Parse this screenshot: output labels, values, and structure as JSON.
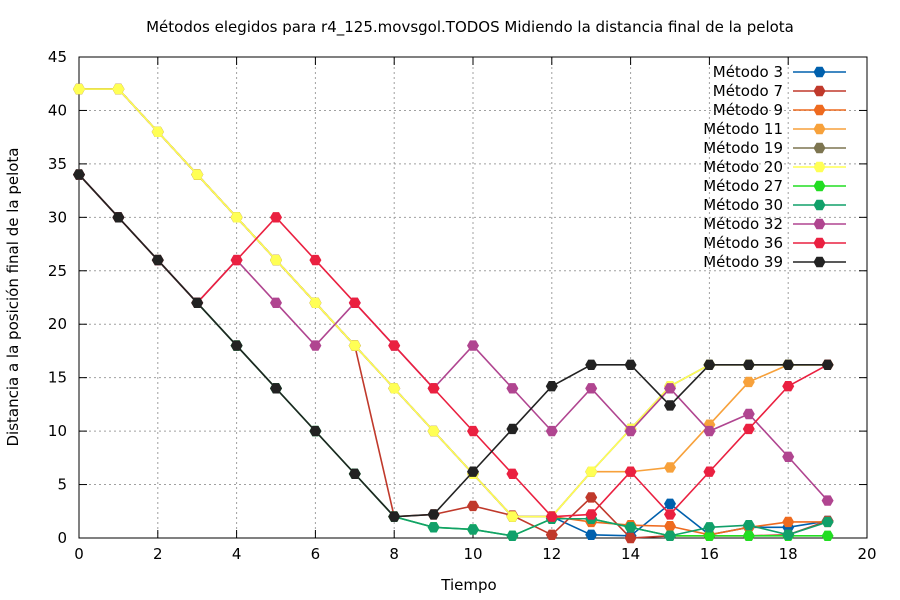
{
  "chart_data": {
    "type": "line",
    "title": "Métodos elegidos para r4_125.movsgol.TODOS Midiendo la distancia final de la pelota",
    "xlabel": "Tiempo",
    "ylabel": "Distancia a la posición final de la pelota",
    "xlim": [
      0,
      20
    ],
    "ylim": [
      0,
      45
    ],
    "xticks": [
      "0",
      "2",
      "4",
      "6",
      "8",
      "10",
      "12",
      "14",
      "16",
      "18",
      "20"
    ],
    "yticks": [
      "0",
      "5",
      "10",
      "15",
      "20",
      "25",
      "30",
      "35",
      "40",
      "45"
    ],
    "grid": true,
    "legend_position": "top-right",
    "series": [
      {
        "name": "Método 3",
        "color": "#0060ad",
        "x": [
          0,
          1,
          2,
          3,
          4,
          5,
          6,
          7,
          8,
          9,
          10,
          11,
          12,
          13,
          14,
          15,
          16,
          17,
          18,
          19
        ],
        "y": [
          42,
          42,
          38,
          34,
          30,
          26,
          22,
          18,
          14,
          10,
          6,
          2,
          2,
          0.3,
          0.2,
          3.2,
          0.3,
          1,
          1,
          1.6
        ]
      },
      {
        "name": "Método 7",
        "color": "#c0392b",
        "x": [
          0,
          1,
          2,
          3,
          4,
          5,
          6,
          7,
          8,
          9,
          10,
          11,
          12,
          13,
          14,
          15,
          16,
          17,
          18,
          19
        ],
        "y": [
          42,
          42,
          38,
          34,
          30,
          26,
          22,
          18,
          2,
          2.2,
          3,
          2.1,
          0.3,
          3.8,
          0,
          0.2,
          0.2,
          0.2,
          0.3,
          1.6
        ]
      },
      {
        "name": "Método 9",
        "color": "#ee6a1f",
        "x": [
          0,
          1,
          2,
          3,
          4,
          5,
          6,
          7,
          8,
          9,
          10,
          11,
          12,
          13,
          14,
          15,
          16,
          17,
          18,
          19
        ],
        "y": [
          42,
          42,
          38,
          34,
          30,
          26,
          22,
          18,
          14,
          10,
          6,
          2,
          2,
          1.5,
          1.2,
          1.1,
          0.3,
          1,
          1.5,
          1.5
        ]
      },
      {
        "name": "Método 11",
        "color": "#f7a13b",
        "x": [
          0,
          1,
          2,
          3,
          4,
          5,
          6,
          7,
          8,
          9,
          10,
          11,
          12,
          13,
          14,
          15,
          16,
          17,
          18,
          19
        ],
        "y": [
          42,
          42,
          38,
          34,
          30,
          26,
          22,
          18,
          14,
          10,
          6,
          2,
          2,
          6.2,
          6.2,
          6.6,
          10.6,
          14.6,
          16.2,
          16.2
        ]
      },
      {
        "name": "Método 19",
        "color": "#7d7550",
        "x": [
          0,
          1,
          2,
          3,
          4,
          5,
          6,
          7,
          8,
          9,
          10,
          11,
          12,
          13,
          14,
          15,
          16,
          17,
          18,
          19
        ],
        "y": [
          42,
          42,
          38,
          34,
          30,
          26,
          22,
          18,
          14,
          10,
          6,
          2,
          2,
          6.2,
          10.2,
          14.2,
          16.2,
          16.2,
          16.2,
          16.2
        ]
      },
      {
        "name": "Método 20",
        "color": "#ffff55",
        "x": [
          0,
          1,
          2,
          3,
          4,
          5,
          6,
          7,
          8,
          9,
          10,
          11,
          12,
          13,
          14,
          15,
          16,
          17,
          18,
          19
        ],
        "y": [
          42,
          42,
          38,
          34,
          30,
          26,
          22,
          18,
          14,
          10,
          6,
          2,
          2,
          6.2,
          10.2,
          14.2,
          16.2,
          16.2,
          16.2,
          16.2
        ]
      },
      {
        "name": "Método 27",
        "color": "#22dd22",
        "x": [
          0,
          1,
          2,
          3,
          4,
          5,
          6,
          7,
          8,
          9,
          10,
          11,
          12,
          13,
          14,
          15,
          16,
          17,
          18,
          19
        ],
        "y": [
          34,
          30,
          26,
          22,
          18,
          14,
          10,
          6,
          2,
          1,
          0.8,
          0.2,
          1.8,
          1.8,
          1,
          0.2,
          0.2,
          0.2,
          0.2,
          0.2
        ]
      },
      {
        "name": "Método 30",
        "color": "#11a06a",
        "x": [
          0,
          1,
          2,
          3,
          4,
          5,
          6,
          7,
          8,
          9,
          10,
          11,
          12,
          13,
          14,
          15,
          16,
          17,
          18,
          19
        ],
        "y": [
          34,
          30,
          26,
          22,
          18,
          14,
          10,
          6,
          2,
          1,
          0.8,
          0.2,
          1.8,
          1.8,
          1,
          0.2,
          1,
          1.2,
          0.3,
          1.5
        ]
      },
      {
        "name": "Método 32",
        "color": "#b04590",
        "x": [
          0,
          1,
          2,
          3,
          4,
          5,
          6,
          7,
          8,
          9,
          10,
          11,
          12,
          13,
          14,
          15,
          16,
          17,
          18,
          19
        ],
        "y": [
          34,
          30,
          26,
          22,
          26,
          22,
          18,
          22,
          18,
          14,
          18,
          14,
          10,
          14,
          10,
          14,
          10,
          11.6,
          7.6,
          3.5
        ]
      },
      {
        "name": "Método 36",
        "color": "#ea2040",
        "x": [
          0,
          1,
          2,
          3,
          4,
          5,
          6,
          7,
          8,
          9,
          10,
          11,
          12,
          13,
          14,
          15,
          16,
          17,
          18,
          19
        ],
        "y": [
          34,
          30,
          26,
          22,
          26,
          30,
          26,
          22,
          18,
          14,
          10,
          6,
          2,
          2.2,
          6.2,
          2.2,
          6.2,
          10.2,
          14.2,
          16.2
        ]
      },
      {
        "name": "Método 39",
        "color": "#222222",
        "x": [
          0,
          1,
          2,
          3,
          4,
          5,
          6,
          7,
          8,
          9,
          10,
          11,
          12,
          13,
          14,
          15,
          16,
          17,
          18,
          19
        ],
        "y": [
          34,
          30,
          26,
          22,
          18,
          14,
          10,
          6,
          2,
          2.2,
          6.2,
          10.2,
          14.2,
          16.2,
          16.2,
          12.4,
          16.2,
          16.2,
          16.2,
          16.2
        ]
      }
    ]
  }
}
